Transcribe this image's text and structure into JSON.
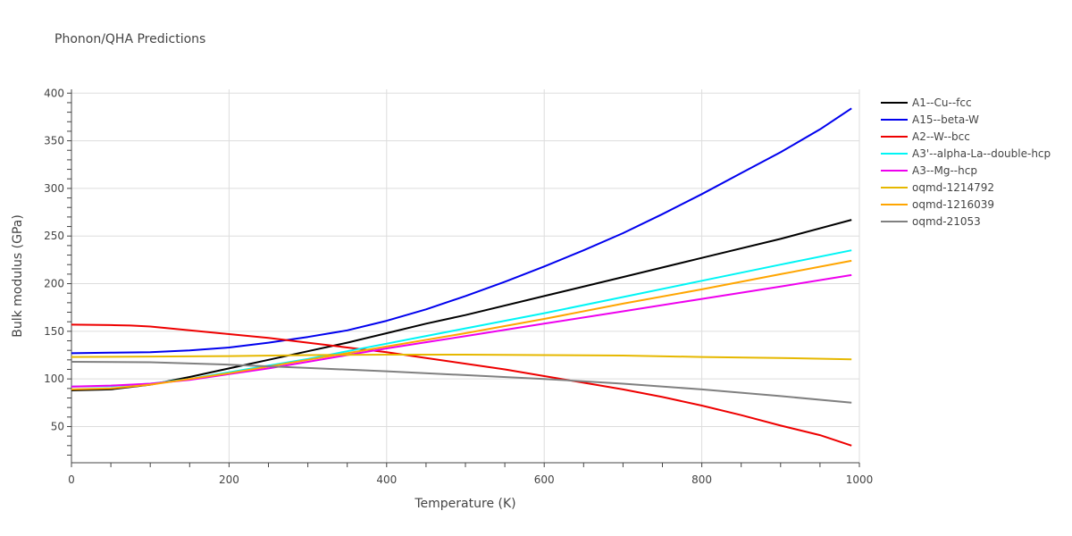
{
  "chart_data": {
    "type": "line",
    "title": "Phonon/QHA Predictions",
    "xlabel": "Temperature (K)",
    "ylabel": "Bulk modulus (GPa)",
    "xlim": [
      0,
      1000
    ],
    "ylim": [
      12,
      404
    ],
    "xticks": [
      0,
      200,
      400,
      600,
      800,
      1000
    ],
    "yticks": [
      50,
      100,
      150,
      200,
      250,
      300,
      350,
      400
    ],
    "grid": true,
    "legend_position": "right",
    "series": [
      {
        "name": "A1--Cu--fcc",
        "color": "#000000",
        "x": [
          0,
          50,
          100,
          150,
          200,
          250,
          300,
          350,
          400,
          450,
          500,
          600,
          700,
          800,
          900,
          990
        ],
        "y": [
          88,
          89,
          94,
          102,
          111,
          120,
          129,
          138,
          148,
          158,
          167,
          187,
          207,
          227,
          247,
          267
        ]
      },
      {
        "name": "A15--beta-W",
        "color": "#0000ee",
        "x": [
          0,
          50,
          100,
          150,
          200,
          250,
          300,
          350,
          400,
          450,
          500,
          550,
          600,
          650,
          700,
          750,
          800,
          850,
          900,
          950,
          990
        ],
        "y": [
          127,
          127.5,
          128,
          130,
          133,
          138,
          144,
          151,
          161,
          173,
          187,
          202,
          218,
          235,
          253,
          273,
          294,
          316,
          338,
          362,
          384
        ]
      },
      {
        "name": "A2--W--bcc",
        "color": "#ee0000",
        "x": [
          0,
          50,
          75,
          100,
          150,
          200,
          250,
          300,
          350,
          400,
          450,
          500,
          550,
          600,
          650,
          700,
          750,
          800,
          850,
          900,
          950,
          990
        ],
        "y": [
          157,
          156.5,
          156,
          155,
          151,
          147,
          143,
          138,
          133,
          128,
          122,
          116,
          110,
          103,
          96,
          89,
          81,
          72,
          62,
          51,
          41,
          30
        ]
      },
      {
        "name": "A3'--alpha-La--double-hcp",
        "color": "#00f5f5",
        "x": [
          0,
          50,
          100,
          150,
          200,
          250,
          300,
          350,
          400,
          500,
          600,
          700,
          800,
          900,
          990
        ],
        "y": [
          92,
          92.5,
          95,
          100,
          107,
          114,
          121,
          129,
          137,
          153,
          169,
          186,
          203,
          220,
          235
        ]
      },
      {
        "name": "A3--Mg--hcp",
        "color": "#ee00ee",
        "x": [
          0,
          50,
          100,
          150,
          200,
          250,
          300,
          350,
          400,
          500,
          600,
          700,
          800,
          900,
          990
        ],
        "y": [
          92,
          93,
          95,
          99,
          105,
          111,
          118,
          125,
          132,
          145,
          158,
          171,
          184,
          197,
          209
        ]
      },
      {
        "name": "oqmd-1214792",
        "color": "#e6b800",
        "x": [
          0,
          100,
          200,
          300,
          400,
          500,
          600,
          700,
          800,
          900,
          990
        ],
        "y": [
          123,
          123.5,
          124,
          125,
          125.5,
          125.5,
          125,
          124.5,
          123,
          122,
          120.5
        ]
      },
      {
        "name": "oqmd-1216039",
        "color": "#ffa500",
        "x": [
          0,
          50,
          100,
          150,
          200,
          250,
          300,
          350,
          400,
          500,
          600,
          700,
          800,
          900,
          990
        ],
        "y": [
          89,
          90,
          94,
          100,
          106,
          113,
          120,
          127,
          134,
          148,
          163,
          179,
          194,
          210,
          224
        ]
      },
      {
        "name": "oqmd-21053",
        "color": "#808080",
        "x": [
          0,
          100,
          200,
          300,
          400,
          500,
          600,
          700,
          800,
          900,
          990
        ],
        "y": [
          118,
          117.5,
          115,
          111.5,
          108,
          104,
          100,
          95,
          89,
          82,
          75
        ]
      }
    ]
  }
}
